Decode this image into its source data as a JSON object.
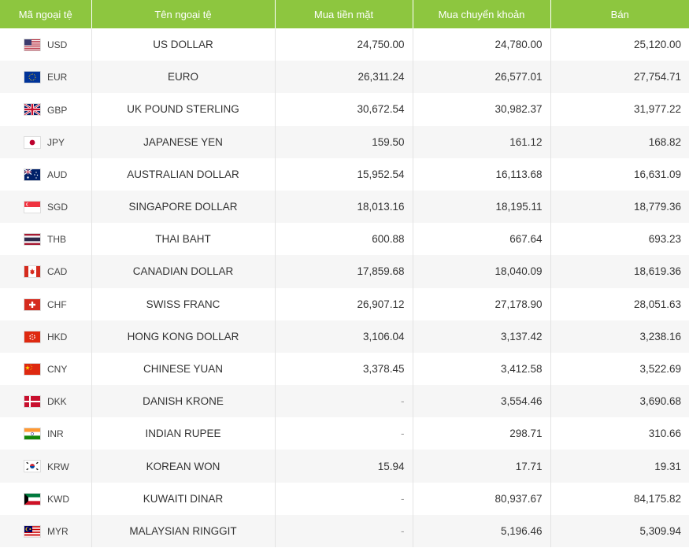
{
  "headers": {
    "code": "Mã ngoại tệ",
    "name": "Tên ngoại tệ",
    "cash_buy": "Mua tiền mặt",
    "transfer_buy": "Mua chuyển khoản",
    "sell": "Bán"
  },
  "rows": [
    {
      "code": "USD",
      "name": "US DOLLAR",
      "cash": "24,750.00",
      "transfer": "24,780.00",
      "sell": "25,120.00",
      "flag": "us-flag-icon"
    },
    {
      "code": "EUR",
      "name": "EURO",
      "cash": "26,311.24",
      "transfer": "26,577.01",
      "sell": "27,754.71",
      "flag": "eu-flag-icon"
    },
    {
      "code": "GBP",
      "name": "UK POUND STERLING",
      "cash": "30,672.54",
      "transfer": "30,982.37",
      "sell": "31,977.22",
      "flag": "uk-flag-icon"
    },
    {
      "code": "JPY",
      "name": "JAPANESE YEN",
      "cash": "159.50",
      "transfer": "161.12",
      "sell": "168.82",
      "flag": "jp-flag-icon"
    },
    {
      "code": "AUD",
      "name": "AUSTRALIAN DOLLAR",
      "cash": "15,952.54",
      "transfer": "16,113.68",
      "sell": "16,631.09",
      "flag": "au-flag-icon"
    },
    {
      "code": "SGD",
      "name": "SINGAPORE DOLLAR",
      "cash": "18,013.16",
      "transfer": "18,195.11",
      "sell": "18,779.36",
      "flag": "sg-flag-icon"
    },
    {
      "code": "THB",
      "name": "THAI BAHT",
      "cash": "600.88",
      "transfer": "667.64",
      "sell": "693.23",
      "flag": "th-flag-icon"
    },
    {
      "code": "CAD",
      "name": "CANADIAN DOLLAR",
      "cash": "17,859.68",
      "transfer": "18,040.09",
      "sell": "18,619.36",
      "flag": "ca-flag-icon"
    },
    {
      "code": "CHF",
      "name": "SWISS FRANC",
      "cash": "26,907.12",
      "transfer": "27,178.90",
      "sell": "28,051.63",
      "flag": "ch-flag-icon"
    },
    {
      "code": "HKD",
      "name": "HONG KONG DOLLAR",
      "cash": "3,106.04",
      "transfer": "3,137.42",
      "sell": "3,238.16",
      "flag": "hk-flag-icon"
    },
    {
      "code": "CNY",
      "name": "CHINESE YUAN",
      "cash": "3,378.45",
      "transfer": "3,412.58",
      "sell": "3,522.69",
      "flag": "cn-flag-icon"
    },
    {
      "code": "DKK",
      "name": "DANISH KRONE",
      "cash": "-",
      "transfer": "3,554.46",
      "sell": "3,690.68",
      "flag": "dk-flag-icon"
    },
    {
      "code": "INR",
      "name": "INDIAN RUPEE",
      "cash": "-",
      "transfer": "298.71",
      "sell": "310.66",
      "flag": "in-flag-icon"
    },
    {
      "code": "KRW",
      "name": "KOREAN WON",
      "cash": "15.94",
      "transfer": "17.71",
      "sell": "19.31",
      "flag": "kr-flag-icon"
    },
    {
      "code": "KWD",
      "name": "KUWAITI DINAR",
      "cash": "-",
      "transfer": "80,937.67",
      "sell": "84,175.82",
      "flag": "kw-flag-icon"
    },
    {
      "code": "MYR",
      "name": "MALAYSIAN RINGGIT",
      "cash": "-",
      "transfer": "5,196.46",
      "sell": "5,309.94",
      "flag": "my-flag-icon"
    }
  ]
}
